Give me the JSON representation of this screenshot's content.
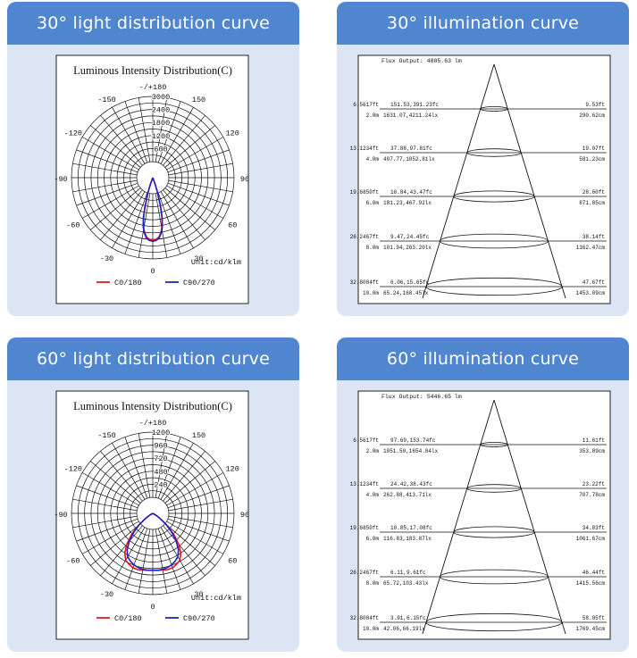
{
  "panels": [
    {
      "id": "p30_dist",
      "header": "30° light distribution curve",
      "chart_data": {
        "type": "polar",
        "title": "Luminous Intensity Distribution(C)",
        "unit_label": "Unit:cd/klm",
        "angle_labels": [
          "-/+180",
          "150",
          "-150",
          "120",
          "-120",
          "90",
          "-90",
          "60",
          "-60",
          "30",
          "-30",
          "0"
        ],
        "radial_ticks": [
          "600",
          "1200",
          "1800",
          "2400",
          "3000"
        ],
        "rmax": 3000,
        "legend": [
          {
            "name": "C0/180",
            "color": "#e8121c"
          },
          {
            "name": "C90/270",
            "color": "#1f22c8"
          }
        ],
        "series": [
          {
            "name": "C0/180",
            "color": "#e8121c",
            "angles_deg": [
              0,
              3,
              6,
              9,
              11,
              13,
              15,
              16,
              18,
              20,
              25
            ],
            "values": [
              2300,
              2280,
              2200,
              2000,
              1800,
              1500,
              1100,
              800,
              500,
              200,
              0
            ]
          },
          {
            "name": "C90/270",
            "color": "#1f22c8",
            "angles_deg": [
              0,
              3,
              6,
              9,
              11,
              13,
              15,
              16,
              18,
              20,
              25
            ],
            "values": [
              2350,
              2320,
              2250,
              2050,
              1850,
              1550,
              1150,
              850,
              550,
              250,
              0
            ]
          }
        ]
      }
    },
    {
      "id": "p30_illum",
      "header": "30° illumination curve",
      "chart_data": {
        "type": "table",
        "flux": "Flux Output: 4805.63 lm",
        "rows": [
          {
            "height_ft": "6.5617ft",
            "height_m": "2.0m",
            "fc": "151.53,391.23fc",
            "lx": "1631.07,4211.24lx",
            "dia_ft": "9.53ft",
            "dia_cm": "290.62cm"
          },
          {
            "height_ft": "13.1234ft",
            "height_m": "4.0m",
            "fc": "37.88,97.81fc",
            "lx": "407.77,1052.81lx",
            "dia_ft": "19.07ft",
            "dia_cm": "581.23cm"
          },
          {
            "height_ft": "19.6850ft",
            "height_m": "6.0m",
            "fc": "16.84,43.47fc",
            "lx": "181.23,467.92lx",
            "dia_ft": "28.60ft",
            "dia_cm": "871.85cm"
          },
          {
            "height_ft": "26.2467ft",
            "height_m": "8.0m",
            "fc": "9.47,24.45fc",
            "lx": "101.94,263.20lx",
            "dia_ft": "38.14ft",
            "dia_cm": "1162.47cm"
          },
          {
            "height_ft": "32.8084ft",
            "height_m": "10.0m",
            "fc": "6.06,15.65fc",
            "lx": "65.24,168.45lx",
            "dia_ft": "47.67ft",
            "dia_cm": "1453.09cm"
          }
        ]
      }
    },
    {
      "id": "p60_dist",
      "header": "60° light distribution curve",
      "chart_data": {
        "type": "polar",
        "title": "Luminous Intensity Distribution(C)",
        "unit_label": "Unit:cd/klm",
        "angle_labels": [
          "-/+180",
          "150",
          "-150",
          "120",
          "-120",
          "90",
          "-90",
          "60",
          "-60",
          "30",
          "-30",
          "0"
        ],
        "radial_ticks": [
          "240",
          "480",
          "720",
          "960",
          "1200"
        ],
        "rmax": 1200,
        "legend": [
          {
            "name": "C0/180",
            "color": "#e8121c"
          },
          {
            "name": "C90/270",
            "color": "#1f22c8"
          }
        ],
        "series": [
          {
            "name": "C0/180",
            "color": "#e8121c",
            "angles_deg": [
              0,
              5,
              10,
              15,
              20,
              25,
              30,
              35,
              40,
              45,
              50,
              55,
              60,
              70
            ],
            "values": [
              840,
              845,
              850,
              860,
              855,
              830,
              800,
              720,
              600,
              440,
              280,
              140,
              60,
              0
            ]
          },
          {
            "name": "C90/270",
            "color": "#1f22c8",
            "angles_deg": [
              0,
              5,
              10,
              15,
              20,
              25,
              30,
              35,
              40,
              45,
              50,
              55,
              60,
              70
            ],
            "values": [
              840,
              842,
              838,
              830,
              810,
              780,
              740,
              660,
              540,
              400,
              260,
              120,
              50,
              0
            ]
          }
        ]
      }
    },
    {
      "id": "p60_illum",
      "header": "60° illumination curve",
      "chart_data": {
        "type": "table",
        "flux": "Flux Output: 5446.65 lm",
        "rows": [
          {
            "height_ft": "6.5617ft",
            "height_m": "2.0m",
            "fc": "97.69,153.74fc",
            "lx": "1051.50,1654.84lx",
            "dia_ft": "11.61ft",
            "dia_cm": "353.89cm"
          },
          {
            "height_ft": "13.1234ft",
            "height_m": "4.0m",
            "fc": "24.42,38.43fc",
            "lx": "262.88,413.71lx",
            "dia_ft": "23.22ft",
            "dia_cm": "707.78cm"
          },
          {
            "height_ft": "19.6850ft",
            "height_m": "6.0m",
            "fc": "10.85,17.08fc",
            "lx": "116.83,183.87lx",
            "dia_ft": "34.83ft",
            "dia_cm": "1061.67cm"
          },
          {
            "height_ft": "26.2467ft",
            "height_m": "8.0m",
            "fc": "6.11,9.61fc",
            "lx": "65.72,103.43lx",
            "dia_ft": "46.44ft",
            "dia_cm": "1415.56cm"
          },
          {
            "height_ft": "32.8084ft",
            "height_m": "10.0m",
            "fc": "3.91,6.15fc",
            "lx": "42.06,66.19lx",
            "dia_ft": "58.05ft",
            "dia_cm": "1769.45cm"
          }
        ]
      }
    }
  ]
}
